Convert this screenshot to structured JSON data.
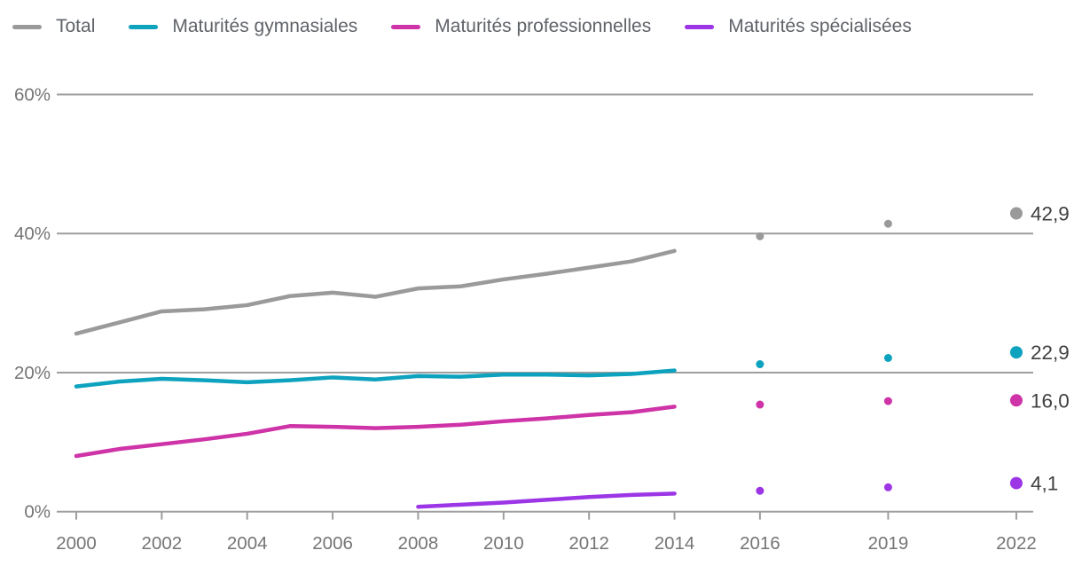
{
  "legend": {
    "items": [
      {
        "label": "Total",
        "color": "#9a9a9a"
      },
      {
        "label": "Maturités gymnasiales",
        "color": "#0da2be"
      },
      {
        "label": "Maturités professionnelles",
        "color": "#ce33a7"
      },
      {
        "label": "Maturités spécialisées",
        "color": "#9b35e6"
      }
    ]
  },
  "chart_data": {
    "type": "line",
    "title": "",
    "xlabel": "",
    "ylabel": "",
    "xlim": [
      2000,
      2022
    ],
    "ylim": [
      0,
      60
    ],
    "grid": "horizontal",
    "legend_position": "top-left",
    "colors": {
      "grid": "#9e9e9e",
      "axis_text": "#757575",
      "value_label_text": "#404040"
    },
    "y_ticks": [
      {
        "value": 0,
        "label": "0%"
      },
      {
        "value": 20,
        "label": "20%"
      },
      {
        "value": 40,
        "label": "40%"
      },
      {
        "value": 60,
        "label": "60%"
      }
    ],
    "x_ticks": [
      {
        "value": 2000,
        "label": "2000"
      },
      {
        "value": 2002,
        "label": "2002"
      },
      {
        "value": 2004,
        "label": "2004"
      },
      {
        "value": 2006,
        "label": "2006"
      },
      {
        "value": 2008,
        "label": "2008"
      },
      {
        "value": 2010,
        "label": "2010"
      },
      {
        "value": 2012,
        "label": "2012"
      },
      {
        "value": 2014,
        "label": "2014"
      },
      {
        "value": 2016,
        "label": "2016"
      },
      {
        "value": 2019,
        "label": "2019"
      },
      {
        "value": 2022,
        "label": "2022"
      }
    ],
    "series": [
      {
        "name": "Total",
        "color": "#9a9a9a",
        "line": {
          "years": [
            2000,
            2001,
            2002,
            2003,
            2004,
            2005,
            2006,
            2007,
            2008,
            2009,
            2010,
            2011,
            2012,
            2013,
            2014
          ],
          "values": [
            25.6,
            27.2,
            28.8,
            29.1,
            29.7,
            31.0,
            31.5,
            30.9,
            32.1,
            32.4,
            33.4,
            34.2,
            35.1,
            36.0,
            37.5
          ]
        },
        "points": [
          {
            "year": 2016,
            "value": 39.6
          },
          {
            "year": 2019,
            "value": 41.4
          }
        ],
        "end_point": {
          "year": 2022,
          "value": 42.9,
          "label": "42,9"
        }
      },
      {
        "name": "Maturités gymnasiales",
        "color": "#0da2be",
        "line": {
          "years": [
            2000,
            2001,
            2002,
            2003,
            2004,
            2005,
            2006,
            2007,
            2008,
            2009,
            2010,
            2011,
            2012,
            2013,
            2014
          ],
          "values": [
            18.0,
            18.7,
            19.1,
            18.9,
            18.6,
            18.9,
            19.3,
            19.0,
            19.5,
            19.4,
            19.7,
            19.7,
            19.6,
            19.8,
            20.3
          ]
        },
        "points": [
          {
            "year": 2016,
            "value": 21.2
          },
          {
            "year": 2019,
            "value": 22.1
          }
        ],
        "end_point": {
          "year": 2022,
          "value": 22.9,
          "label": "22,9"
        }
      },
      {
        "name": "Maturités professionnelles",
        "color": "#ce33a7",
        "line": {
          "years": [
            2000,
            2001,
            2002,
            2003,
            2004,
            2005,
            2006,
            2007,
            2008,
            2009,
            2010,
            2011,
            2012,
            2013,
            2014
          ],
          "values": [
            8.0,
            9.0,
            9.7,
            10.4,
            11.2,
            12.3,
            12.2,
            12.0,
            12.2,
            12.5,
            13.0,
            13.4,
            13.9,
            14.3,
            15.1
          ]
        },
        "points": [
          {
            "year": 2016,
            "value": 15.4
          },
          {
            "year": 2019,
            "value": 15.9
          }
        ],
        "end_point": {
          "year": 2022,
          "value": 16.0,
          "label": "16,0"
        }
      },
      {
        "name": "Maturités spécialisées",
        "color": "#9b35e6",
        "line": {
          "years": [
            2008,
            2009,
            2010,
            2011,
            2012,
            2013,
            2014
          ],
          "values": [
            0.7,
            1.0,
            1.3,
            1.7,
            2.1,
            2.4,
            2.6
          ]
        },
        "points": [
          {
            "year": 2016,
            "value": 3.0
          },
          {
            "year": 2019,
            "value": 3.5
          }
        ],
        "end_point": {
          "year": 2022,
          "value": 4.1,
          "label": "4,1"
        }
      }
    ]
  }
}
